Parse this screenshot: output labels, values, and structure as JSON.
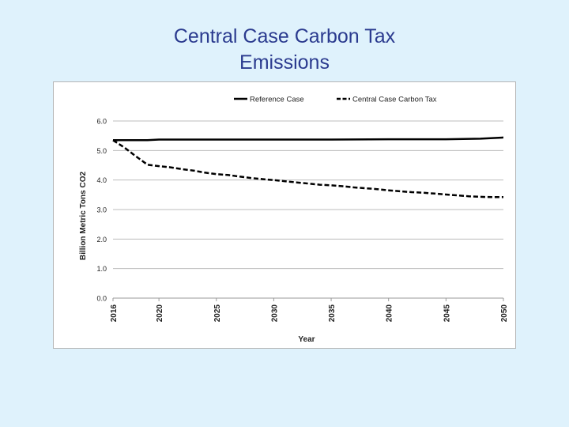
{
  "slide": {
    "title_line1": "Central Case Carbon Tax",
    "title_line2": "Emissions"
  },
  "chart_data": {
    "type": "line",
    "title": "",
    "xlabel": "Year",
    "ylabel": "Billion Metric Tons CO2",
    "ylim": [
      0,
      6
    ],
    "xlim": [
      2016,
      2050
    ],
    "yticks": [
      "0.0",
      "1.0",
      "2.0",
      "3.0",
      "4.0",
      "5.0",
      "6.0"
    ],
    "xticks": [
      "2016",
      "2020",
      "2025",
      "2030",
      "2035",
      "2040",
      "2045",
      "2050"
    ],
    "grid": "horizontal",
    "legend_position": "top",
    "series": [
      {
        "name": "Reference Case",
        "style": "solid",
        "color": "#000000",
        "x": [
          2016,
          2019,
          2020,
          2025,
          2030,
          2035,
          2040,
          2045,
          2048,
          2050
        ],
        "values": [
          5.35,
          5.35,
          5.37,
          5.37,
          5.37,
          5.37,
          5.38,
          5.38,
          5.4,
          5.44
        ]
      },
      {
        "name": "Central Case Carbon Tax",
        "style": "dashed",
        "color": "#000000",
        "x": [
          2016,
          2017,
          2018,
          2019,
          2020,
          2021,
          2022,
          2023,
          2024,
          2025,
          2026,
          2027,
          2028,
          2029,
          2030,
          2031,
          2032,
          2033,
          2034,
          2035,
          2036,
          2037,
          2038,
          2039,
          2040,
          2041,
          2042,
          2043,
          2044,
          2045,
          2046,
          2047,
          2048,
          2049,
          2050
        ],
        "values": [
          5.35,
          5.1,
          4.8,
          4.52,
          4.47,
          4.43,
          4.37,
          4.32,
          4.25,
          4.2,
          4.17,
          4.12,
          4.07,
          4.03,
          4.0,
          3.96,
          3.92,
          3.88,
          3.84,
          3.82,
          3.79,
          3.75,
          3.72,
          3.69,
          3.65,
          3.62,
          3.59,
          3.57,
          3.54,
          3.51,
          3.48,
          3.45,
          3.43,
          3.42,
          3.42
        ]
      }
    ]
  }
}
